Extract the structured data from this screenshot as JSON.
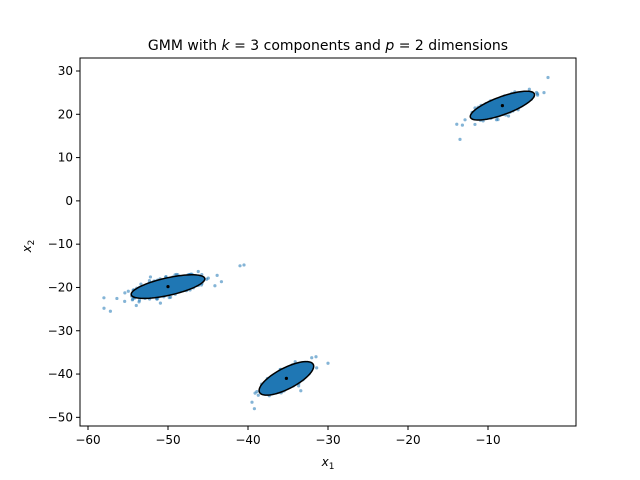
{
  "chart_data": {
    "type": "scatter",
    "title": "GMM with k = 3 components and p = 2 dimensions",
    "xlabel": "x1",
    "ylabel": "x2",
    "xlim": [
      -61,
      1
    ],
    "ylim": [
      -52,
      33
    ],
    "xticks": [
      -60,
      -50,
      -40,
      -30,
      -20,
      -10
    ],
    "yticks": [
      -50,
      -40,
      -30,
      -20,
      -10,
      0,
      10,
      20,
      30
    ],
    "grid": false,
    "colors": {
      "points": "#1f77b4",
      "ellipse_fill": "#1f77b4",
      "ellipse_edge": "#000000",
      "mean": "#000000"
    },
    "components": [
      {
        "mean": [
          -50,
          -19.8
        ],
        "semi_major": 9.0,
        "semi_minor": 3.0,
        "angle_deg": 25,
        "n_points": 450,
        "spread": [
          2.4,
          0.9
        ],
        "ellipse_semi_major": 5.0,
        "ellipse_semi_minor": 1.9,
        "outliers": [
          [
            -58,
            -24.8
          ],
          [
            -57.2,
            -25.5
          ],
          [
            -41,
            -15
          ],
          [
            -40.5,
            -14.8
          ]
        ]
      },
      {
        "mean": [
          -35.2,
          -41
        ],
        "semi_major": 6.5,
        "semi_minor": 2.6,
        "angle_deg": 50,
        "n_points": 380,
        "spread": [
          1.8,
          0.8
        ],
        "ellipse_semi_major": 4.8,
        "ellipse_semi_minor": 1.9,
        "outliers": [
          [
            -39.5,
            -46.5
          ],
          [
            -39.2,
            -48
          ],
          [
            -31.5,
            -36
          ],
          [
            -30,
            -37.5
          ]
        ]
      },
      {
        "mean": [
          -8.2,
          22
        ],
        "semi_major": 6.5,
        "semi_minor": 2.4,
        "angle_deg": 38,
        "n_points": 380,
        "spread": [
          1.9,
          0.75
        ],
        "ellipse_semi_major": 4.9,
        "ellipse_semi_minor": 1.8,
        "outliers": [
          [
            -13.5,
            14.2
          ],
          [
            -13.2,
            17.5
          ],
          [
            -2.5,
            28.5
          ],
          [
            -3,
            25
          ]
        ]
      }
    ]
  }
}
